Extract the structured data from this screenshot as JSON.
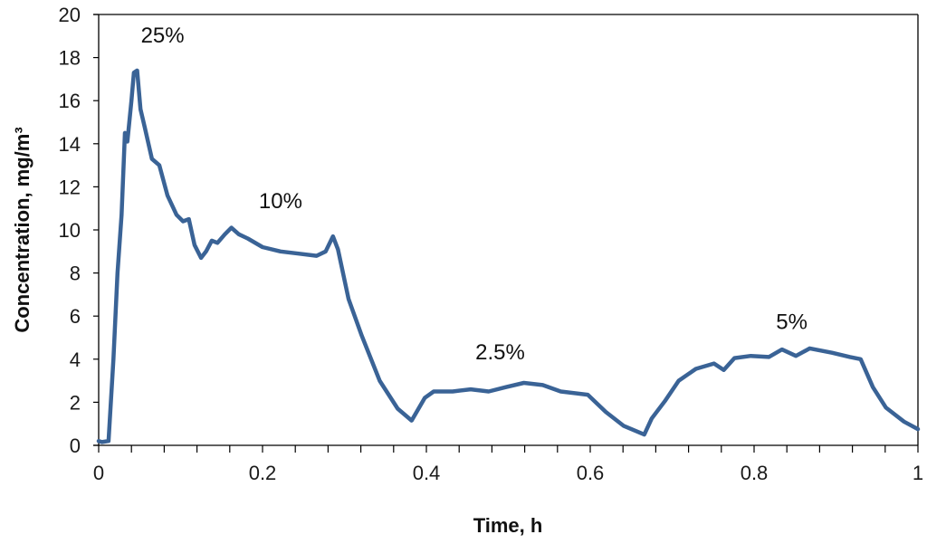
{
  "chart_data": {
    "type": "line",
    "title": "",
    "xlabel": "Time, h",
    "ylabel": "Concentration, mg/m³",
    "xlim": [
      0,
      1
    ],
    "ylim": [
      0,
      20
    ],
    "x_ticks": [
      0,
      0.2,
      0.4,
      0.6,
      0.8,
      1
    ],
    "x_tick_labels": [
      "0",
      "0.2",
      "0.4",
      "0.6",
      "0.8",
      "1"
    ],
    "x_minor_step": 0.04,
    "y_ticks": [
      0,
      2,
      4,
      6,
      8,
      10,
      12,
      14,
      16,
      18,
      20
    ],
    "y_tick_labels": [
      "0",
      "2",
      "4",
      "6",
      "8",
      "10",
      "12",
      "14",
      "16",
      "18",
      "20"
    ],
    "grid": false,
    "legend": null,
    "line_color": "#3a6396",
    "annotations": [
      {
        "text": "25%",
        "x": 0.078,
        "y": 18.7
      },
      {
        "text": "10%",
        "x": 0.222,
        "y": 11.0
      },
      {
        "text": "2.5%",
        "x": 0.49,
        "y": 4.0
      },
      {
        "text": "5%",
        "x": 0.846,
        "y": 5.4
      }
    ],
    "series": [
      {
        "name": "Concentration",
        "x": [
          0,
          0.004,
          0.012,
          0.018,
          0.023,
          0.028,
          0.032,
          0.035,
          0.04,
          0.043,
          0.047,
          0.051,
          0.056,
          0.065,
          0.074,
          0.084,
          0.095,
          0.103,
          0.11,
          0.117,
          0.125,
          0.131,
          0.138,
          0.145,
          0.154,
          0.162,
          0.171,
          0.182,
          0.2,
          0.222,
          0.244,
          0.266,
          0.277,
          0.286,
          0.292,
          0.305,
          0.321,
          0.343,
          0.365,
          0.382,
          0.398,
          0.409,
          0.432,
          0.454,
          0.476,
          0.497,
          0.519,
          0.542,
          0.564,
          0.597,
          0.619,
          0.641,
          0.666,
          0.675,
          0.691,
          0.708,
          0.729,
          0.751,
          0.763,
          0.776,
          0.796,
          0.818,
          0.834,
          0.851,
          0.868,
          0.895,
          0.917,
          0.93,
          0.945,
          0.961,
          0.983,
          1.0
        ],
        "values": [
          0.2,
          0.15,
          0.2,
          4.0,
          8.0,
          10.7,
          14.5,
          14.1,
          16.0,
          17.3,
          17.4,
          15.6,
          14.8,
          13.3,
          13.0,
          11.6,
          10.7,
          10.4,
          10.5,
          9.3,
          8.7,
          9.0,
          9.5,
          9.4,
          9.8,
          10.1,
          9.8,
          9.6,
          9.2,
          9.0,
          8.9,
          8.8,
          9.0,
          9.7,
          9.1,
          6.8,
          5.1,
          3.0,
          1.7,
          1.15,
          2.2,
          2.5,
          2.5,
          2.6,
          2.5,
          2.7,
          2.9,
          2.8,
          2.5,
          2.35,
          1.55,
          0.9,
          0.5,
          1.25,
          2.05,
          3.0,
          3.55,
          3.8,
          3.5,
          4.05,
          4.15,
          4.1,
          4.45,
          4.15,
          4.5,
          4.3,
          4.1,
          4.0,
          2.7,
          1.75,
          1.1,
          0.75
        ]
      }
    ]
  }
}
